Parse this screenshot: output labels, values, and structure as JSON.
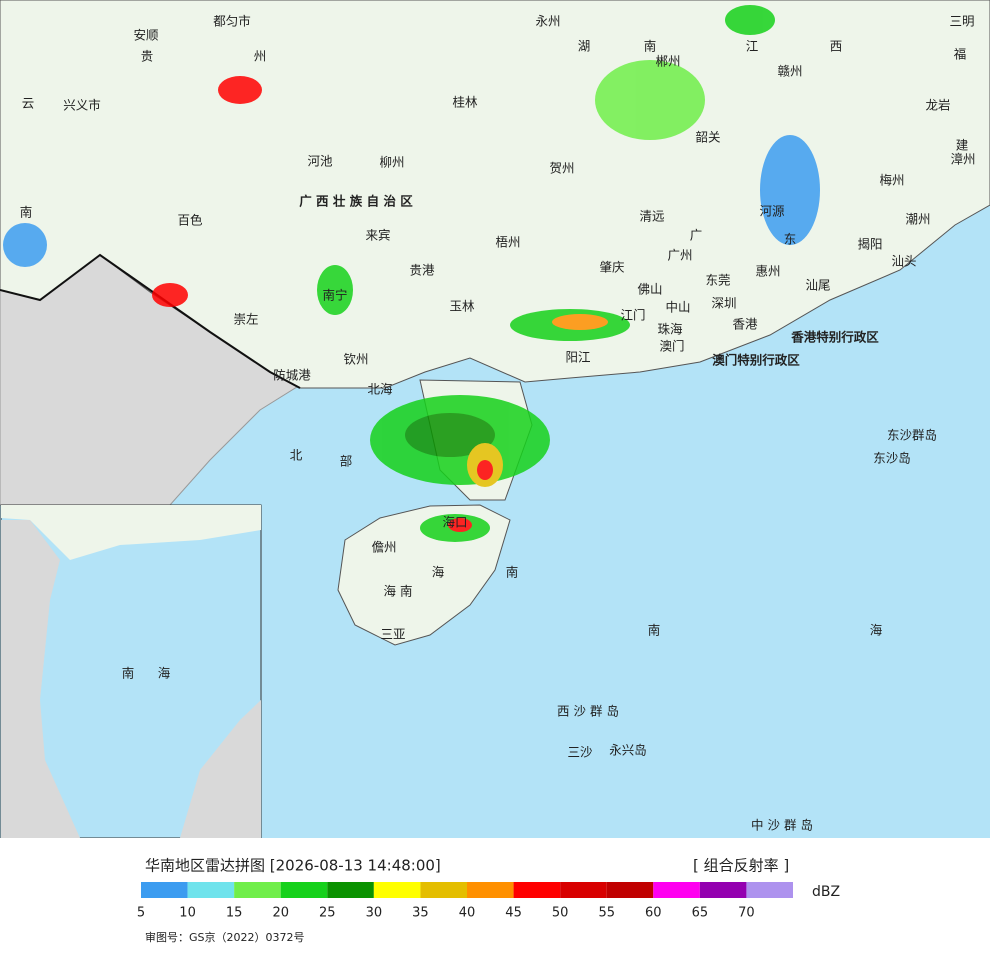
{
  "header": {
    "title": "华南地区雷达拼图 [2026-08-13 14:48:00]",
    "product": "[ 组合反射率 ]"
  },
  "legend": {
    "unit": "dBZ",
    "ticks": [
      5,
      10,
      15,
      20,
      25,
      30,
      35,
      40,
      45,
      50,
      55,
      60,
      65,
      70
    ],
    "colors": [
      "#3c9cf0",
      "#6fe3ec",
      "#70ee4a",
      "#16d11b",
      "#0a9200",
      "#ffff00",
      "#e4be00",
      "#ff9000",
      "#ff0000",
      "#d80000",
      "#c00000",
      "#ff00f0",
      "#9400b0",
      "#ad92ee"
    ]
  },
  "footer": {
    "approval": "审图号：GS京（2022）0372号"
  },
  "map": {
    "labels": [
      "永州",
      "湖",
      "南",
      "江",
      "西",
      "三明",
      "福",
      "安顺",
      "都匀市",
      "贵",
      "州",
      "郴州",
      "赣州",
      "兴义市",
      "云",
      "桂林",
      "龙岩",
      "韶关",
      "建",
      "河池",
      "柳州",
      "贺州",
      "漳州",
      "梅州",
      "广 西 壮 族 自 治 区",
      "百色",
      "清远",
      "河源",
      "潮州",
      "南",
      "来宾",
      "梧州",
      "广",
      "东",
      "揭阳",
      "汕头",
      "贵港",
      "广州",
      "肇庆",
      "东莞",
      "惠州",
      "汕尾",
      "南宁",
      "玉林",
      "佛山",
      "中山",
      "深圳",
      "崇左",
      "江门",
      "珠海",
      "香港",
      "香港特别行政区",
      "澳门",
      "澳门特别行政区",
      "钦州",
      "阳江",
      "防城港",
      "北海",
      "东沙群岛",
      "东沙岛",
      "北",
      "部",
      "海口",
      "儋州",
      "海",
      "南",
      "海 南",
      "三亚",
      "南",
      "海",
      "西 沙 群 岛",
      "三沙",
      "永兴岛",
      "中 沙 群 岛"
    ],
    "inset_labels": [
      "南",
      "海"
    ]
  }
}
